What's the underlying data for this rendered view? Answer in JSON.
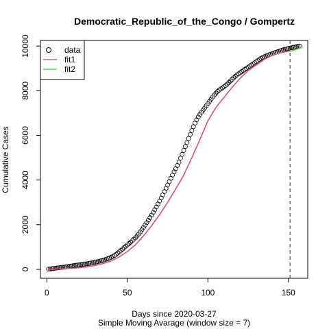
{
  "chart_data": {
    "type": "line",
    "title": "Democratic_Republic_of_the_Congo / Gompertz",
    "xlabel": "Days since 2020-03-27",
    "xlabel2": "Simple Moving Avarage (window size = 7)",
    "ylabel": "Cumulative Cases",
    "xlim": [
      -4,
      162
    ],
    "ylim": [
      -400,
      10250
    ],
    "x_ticks": [
      0,
      50,
      100,
      150
    ],
    "y_ticks": [
      0,
      2000,
      4000,
      6000,
      8000,
      10000
    ],
    "vline": {
      "x": 151,
      "style": "dashed",
      "color": "#555555"
    },
    "legend": {
      "position": "top-left",
      "entries": [
        "data",
        "fit1",
        "fit2"
      ]
    },
    "colors": {
      "data": "#000000",
      "fit1": "#DF536B",
      "fit2": "#61D04F"
    },
    "series": [
      {
        "name": "data",
        "kind": "points",
        "x_start": 1,
        "x_step": 1,
        "values": [
          10,
          18,
          27,
          37,
          48,
          58,
          67,
          76,
          84,
          93,
          101,
          112,
          123,
          135,
          146,
          158,
          169,
          181,
          192,
          202,
          212,
          220,
          229,
          240,
          251,
          264,
          277,
          291,
          305,
          319,
          334,
          351,
          370,
          390,
          411,
          433,
          457,
          484,
          513,
          546,
          583,
          625,
          674,
          729,
          788,
          850,
          912,
          974,
          1035,
          1096,
          1156,
          1217,
          1281,
          1346,
          1418,
          1496,
          1581,
          1674,
          1773,
          1878,
          1984,
          2092,
          2201,
          2314,
          2430,
          2550,
          2672,
          2796,
          2925,
          3057,
          3195,
          3336,
          3483,
          3630,
          3778,
          3926,
          4075,
          4222,
          4367,
          4508,
          4650,
          4802,
          4974,
          5148,
          5325,
          5503,
          5681,
          5860,
          6040,
          6218,
          6388,
          6550,
          6696,
          6822,
          6935,
          7038,
          7135,
          7231,
          7327,
          7423,
          7521,
          7620,
          7718,
          7808,
          7892,
          7967,
          8027,
          8078,
          8127,
          8178,
          8236,
          8296,
          8366,
          8437,
          8510,
          8580,
          8644,
          8703,
          8756,
          8807,
          8856,
          8905,
          8955,
          9005,
          9054,
          9103,
          9150,
          9199,
          9249,
          9302,
          9352,
          9402,
          9447,
          9487,
          9520,
          9550,
          9580,
          9610,
          9637,
          9662,
          9686,
          9712,
          9737,
          9761,
          9785,
          9810,
          9833,
          9855,
          9875,
          9893,
          9909,
          9923,
          9937,
          9953,
          9971,
          9993,
          10000
        ]
      },
      {
        "name": "fit1",
        "kind": "line",
        "x": [
          1,
          5,
          10,
          15,
          20,
          25,
          30,
          35,
          40,
          45,
          50,
          55,
          60,
          65,
          70,
          75,
          80,
          85,
          90,
          95,
          100,
          105,
          110,
          115,
          120,
          125,
          130,
          135,
          140,
          145,
          151
        ],
        "values": [
          5,
          10,
          22,
          42,
          72,
          115,
          175,
          260,
          380,
          560,
          800,
          1100,
          1500,
          1950,
          2450,
          3000,
          3600,
          4220,
          5000,
          5800,
          6650,
          7250,
          7700,
          8150,
          8550,
          8900,
          9150,
          9400,
          9580,
          9700,
          9780
        ]
      },
      {
        "name": "fit2",
        "kind": "line",
        "x": [
          151,
          154,
          157,
          159
        ],
        "values": [
          9760,
          9830,
          9900,
          9960
        ]
      }
    ]
  }
}
